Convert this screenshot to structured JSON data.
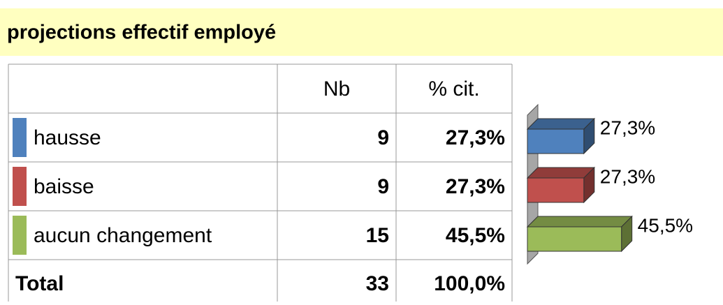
{
  "title": "projections  effectif employé",
  "table": {
    "header": [
      "Nb",
      "% cit."
    ],
    "rows": [
      [
        "hausse",
        "9",
        "27,3%"
      ],
      [
        "baisse",
        "9",
        "27,3%"
      ],
      [
        "aucun changement",
        "15",
        "45,5%"
      ]
    ],
    "total": [
      "Total",
      "33",
      "100,0%"
    ]
  },
  "chart_data": {
    "type": "bar",
    "orientation": "horizontal",
    "three_d": true,
    "values": [
      27.3,
      27.3,
      45.5
    ],
    "value_labels": [
      "27,3%",
      "27,3%",
      "45,5%"
    ],
    "colors": [
      "#4f81bd",
      "#c0504d",
      "#9bbb59"
    ]
  }
}
